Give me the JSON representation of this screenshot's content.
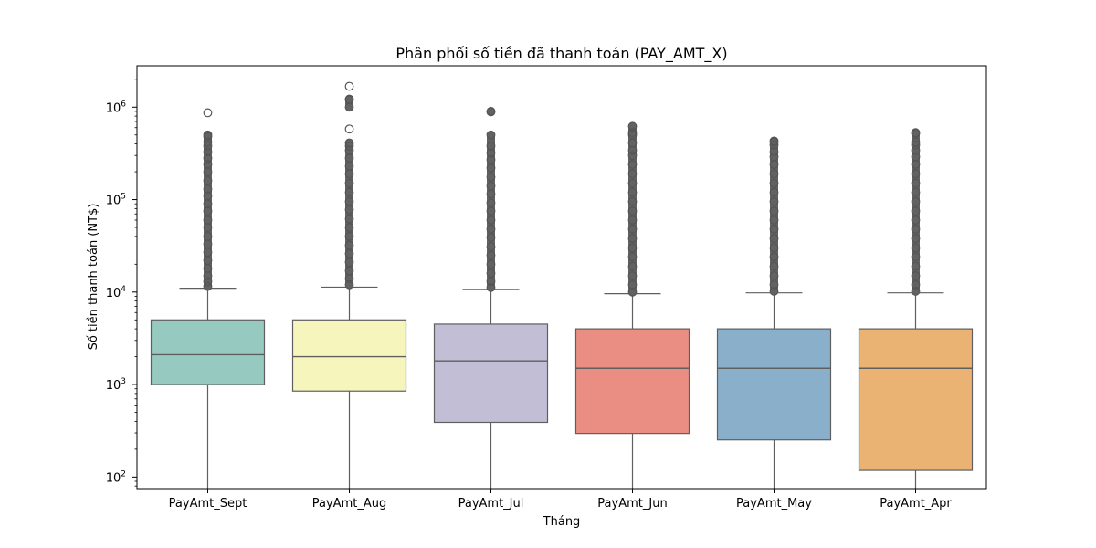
{
  "chart_data": {
    "type": "box",
    "title": "Phân phối số tiền đã thanh toán (PAY_AMT_X)",
    "xlabel": "Tháng",
    "ylabel": "Số tiền thanh toán (NT$)",
    "yscale": "log",
    "ylim": [
      75,
      2800000
    ],
    "y_ticks": [
      {
        "value": 100,
        "base": "10",
        "exp": "2"
      },
      {
        "value": 1000,
        "base": "10",
        "exp": "3"
      },
      {
        "value": 10000,
        "base": "10",
        "exp": "4"
      },
      {
        "value": 100000,
        "base": "10",
        "exp": "5"
      },
      {
        "value": 1000000,
        "base": "10",
        "exp": "6"
      }
    ],
    "grid": false,
    "categories": [
      "PayAmt_Sept",
      "PayAmt_Aug",
      "PayAmt_Jul",
      "PayAmt_Jun",
      "PayAmt_May",
      "PayAmt_Apr"
    ],
    "boxes": [
      {
        "name": "PayAmt_Sept",
        "color": "#96cac1",
        "whisker_low": 0,
        "q1": 1000,
        "median": 2100,
        "q3": 5000,
        "whisker_high": 11000,
        "outliers": [
          11500,
          13000,
          15000,
          18000,
          22000,
          27000,
          33000,
          40000,
          50000,
          60000,
          75000,
          90000,
          110000,
          130000,
          160000,
          200000,
          240000,
          280000,
          330000,
          380000,
          420000,
          480000,
          500000,
          870000
        ]
      },
      {
        "name": "PayAmt_Aug",
        "color": "#f6f6bc",
        "whisker_low": 0,
        "q1": 850,
        "median": 2000,
        "q3": 5000,
        "whisker_high": 11300,
        "outliers": [
          12000,
          14000,
          17000,
          21000,
          26000,
          32000,
          40000,
          50000,
          62000,
          78000,
          95000,
          120000,
          150000,
          190000,
          230000,
          280000,
          340000,
          380000,
          410000,
          580000,
          1000000,
          1200000,
          1220000,
          1680000
        ]
      },
      {
        "name": "PayAmt_Jul",
        "color": "#c1bed6",
        "whisker_low": 0,
        "q1": 390,
        "median": 1800,
        "q3": 4500,
        "whisker_high": 10700,
        "outliers": [
          11200,
          13000,
          16000,
          20000,
          25000,
          31000,
          39000,
          48000,
          60000,
          75000,
          92000,
          115000,
          140000,
          175000,
          220000,
          270000,
          320000,
          380000,
          500000,
          890000,
          900000
        ]
      },
      {
        "name": "PayAmt_Jun",
        "color": "#ea8e83",
        "whisker_low": 0,
        "q1": 296,
        "median": 1500,
        "q3": 4000,
        "whisker_high": 9600,
        "outliers": [
          10000,
          12000,
          15000,
          19000,
          24000,
          30000,
          38000,
          48000,
          60000,
          75000,
          95000,
          120000,
          150000,
          190000,
          240000,
          300000,
          340000,
          410000,
          500000,
          530000,
          620000
        ]
      },
      {
        "name": "PayAmt_May",
        "color": "#8aafca",
        "whisker_low": 0,
        "q1": 252,
        "median": 1500,
        "q3": 4000,
        "whisker_high": 9800,
        "outliers": [
          10200,
          12000,
          15000,
          19000,
          24000,
          30000,
          38000,
          48000,
          60000,
          75000,
          95000,
          120000,
          150000,
          190000,
          240000,
          290000,
          330000,
          390000,
          420000,
          430000
        ]
      },
      {
        "name": "PayAmt_Apr",
        "color": "#eab374",
        "whisker_low": 0,
        "q1": 118,
        "median": 1500,
        "q3": 4000,
        "whisker_high": 9800,
        "outliers": [
          10200,
          12000,
          15000,
          19000,
          24000,
          30000,
          38000,
          48000,
          60000,
          75000,
          95000,
          120000,
          150000,
          190000,
          240000,
          290000,
          340000,
          390000,
          420000,
          520000,
          530000
        ]
      }
    ]
  }
}
